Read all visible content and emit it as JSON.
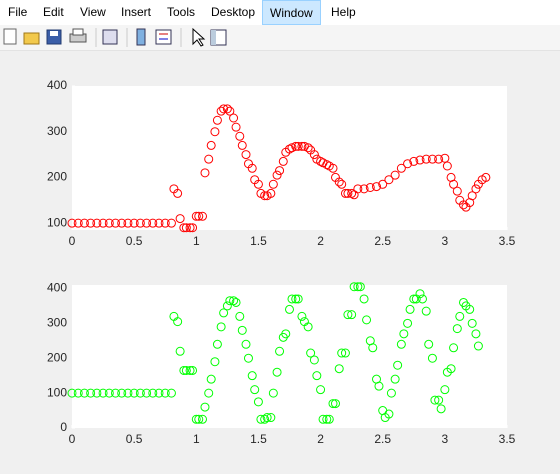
{
  "menu": [
    "File",
    "Edit",
    "View",
    "Insert",
    "Tools",
    "Desktop",
    "Window",
    "Help"
  ],
  "chart_data": [
    {
      "type": "scatter",
      "color": "#ff0000",
      "xlim": [
        0,
        3.5
      ],
      "ylim": [
        85,
        400
      ],
      "xticks": [
        0,
        0.5,
        1,
        1.5,
        2,
        2.5,
        3,
        3.5
      ],
      "yticks": [
        100,
        200,
        300,
        400
      ],
      "x": [
        0,
        0.05,
        0.1,
        0.15,
        0.2,
        0.25,
        0.3,
        0.35,
        0.4,
        0.45,
        0.5,
        0.55,
        0.6,
        0.65,
        0.7,
        0.75,
        0.8,
        0.82,
        0.85,
        0.87,
        0.9,
        0.92,
        0.95,
        0.97,
        1.0,
        1.02,
        1.05,
        1.07,
        1.1,
        1.12,
        1.15,
        1.17,
        1.2,
        1.22,
        1.25,
        1.27,
        1.3,
        1.32,
        1.35,
        1.37,
        1.4,
        1.42,
        1.45,
        1.47,
        1.5,
        1.52,
        1.55,
        1.57,
        1.6,
        1.62,
        1.65,
        1.67,
        1.7,
        1.72,
        1.75,
        1.77,
        1.8,
        1.82,
        1.85,
        1.87,
        1.9,
        1.92,
        1.95,
        1.97,
        2.0,
        2.02,
        2.05,
        2.07,
        2.1,
        2.12,
        2.15,
        2.17,
        2.2,
        2.22,
        2.25,
        2.27,
        2.3,
        2.35,
        2.4,
        2.45,
        2.5,
        2.55,
        2.6,
        2.65,
        2.7,
        2.75,
        2.8,
        2.85,
        2.9,
        2.95,
        3.0,
        3.02,
        3.05,
        3.07,
        3.1,
        3.12,
        3.15,
        3.17,
        3.2,
        3.22,
        3.25,
        3.27,
        3.3,
        3.33
      ],
      "values": [
        100,
        100,
        100,
        100,
        100,
        100,
        100,
        100,
        100,
        100,
        100,
        100,
        100,
        100,
        100,
        100,
        100,
        175,
        165,
        110,
        90,
        90,
        90,
        90,
        115,
        115,
        115,
        210,
        240,
        270,
        300,
        325,
        345,
        350,
        350,
        345,
        330,
        310,
        290,
        270,
        250,
        230,
        220,
        195,
        185,
        165,
        160,
        160,
        165,
        185,
        205,
        215,
        235,
        255,
        262,
        265,
        268,
        268,
        268,
        268,
        265,
        260,
        250,
        240,
        235,
        232,
        228,
        225,
        220,
        200,
        190,
        185,
        165,
        165,
        165,
        162,
        175,
        175,
        178,
        180,
        185,
        195,
        205,
        220,
        230,
        235,
        238,
        240,
        240,
        240,
        242,
        225,
        200,
        185,
        170,
        150,
        140,
        135,
        145,
        160,
        175,
        185,
        195,
        200
      ]
    },
    {
      "type": "scatter",
      "color": "#00ff00",
      "xlim": [
        0,
        3.5
      ],
      "ylim": [
        0,
        410
      ],
      "xticks": [
        0,
        0.5,
        1,
        1.5,
        2,
        2.5,
        3,
        3.5
      ],
      "yticks": [
        0,
        100,
        200,
        300,
        400
      ],
      "x": [
        0,
        0.05,
        0.1,
        0.15,
        0.2,
        0.25,
        0.3,
        0.35,
        0.4,
        0.45,
        0.5,
        0.55,
        0.6,
        0.65,
        0.7,
        0.75,
        0.8,
        0.82,
        0.85,
        0.87,
        0.9,
        0.92,
        0.95,
        0.97,
        1.0,
        1.02,
        1.05,
        1.07,
        1.1,
        1.12,
        1.15,
        1.17,
        1.2,
        1.22,
        1.25,
        1.27,
        1.3,
        1.32,
        1.35,
        1.37,
        1.4,
        1.42,
        1.45,
        1.47,
        1.5,
        1.52,
        1.55,
        1.57,
        1.6,
        1.62,
        1.65,
        1.67,
        1.7,
        1.72,
        1.75,
        1.77,
        1.8,
        1.82,
        1.85,
        1.87,
        1.9,
        1.92,
        1.95,
        1.97,
        2.0,
        2.02,
        2.05,
        2.07,
        2.1,
        2.12,
        2.15,
        2.17,
        2.2,
        2.22,
        2.25,
        2.27,
        2.3,
        2.32,
        2.35,
        2.37,
        2.4,
        2.42,
        2.45,
        2.47,
        2.5,
        2.52,
        2.55,
        2.57,
        2.6,
        2.62,
        2.65,
        2.67,
        2.7,
        2.72,
        2.75,
        2.77,
        2.8,
        2.82,
        2.85,
        2.87,
        2.9,
        2.92,
        2.95,
        2.97,
        3.0,
        3.02,
        3.05,
        3.07,
        3.1,
        3.12,
        3.15,
        3.17,
        3.2,
        3.22,
        3.25,
        3.27
      ],
      "values": [
        100,
        100,
        100,
        100,
        100,
        100,
        100,
        100,
        100,
        100,
        100,
        100,
        100,
        100,
        100,
        100,
        100,
        320,
        305,
        220,
        165,
        165,
        165,
        165,
        25,
        25,
        25,
        60,
        100,
        140,
        190,
        240,
        290,
        330,
        350,
        365,
        365,
        360,
        320,
        280,
        240,
        200,
        150,
        110,
        75,
        25,
        25,
        30,
        30,
        100,
        160,
        220,
        260,
        270,
        340,
        370,
        370,
        370,
        320,
        305,
        290,
        215,
        195,
        150,
        110,
        25,
        25,
        25,
        70,
        70,
        170,
        215,
        215,
        325,
        325,
        405,
        405,
        405,
        370,
        310,
        250,
        230,
        140,
        120,
        50,
        30,
        40,
        100,
        140,
        180,
        240,
        270,
        300,
        340,
        370,
        370,
        385,
        370,
        335,
        240,
        200,
        80,
        80,
        55,
        110,
        160,
        170,
        230,
        285,
        320,
        360,
        350,
        340,
        300,
        270,
        235
      ]
    }
  ]
}
